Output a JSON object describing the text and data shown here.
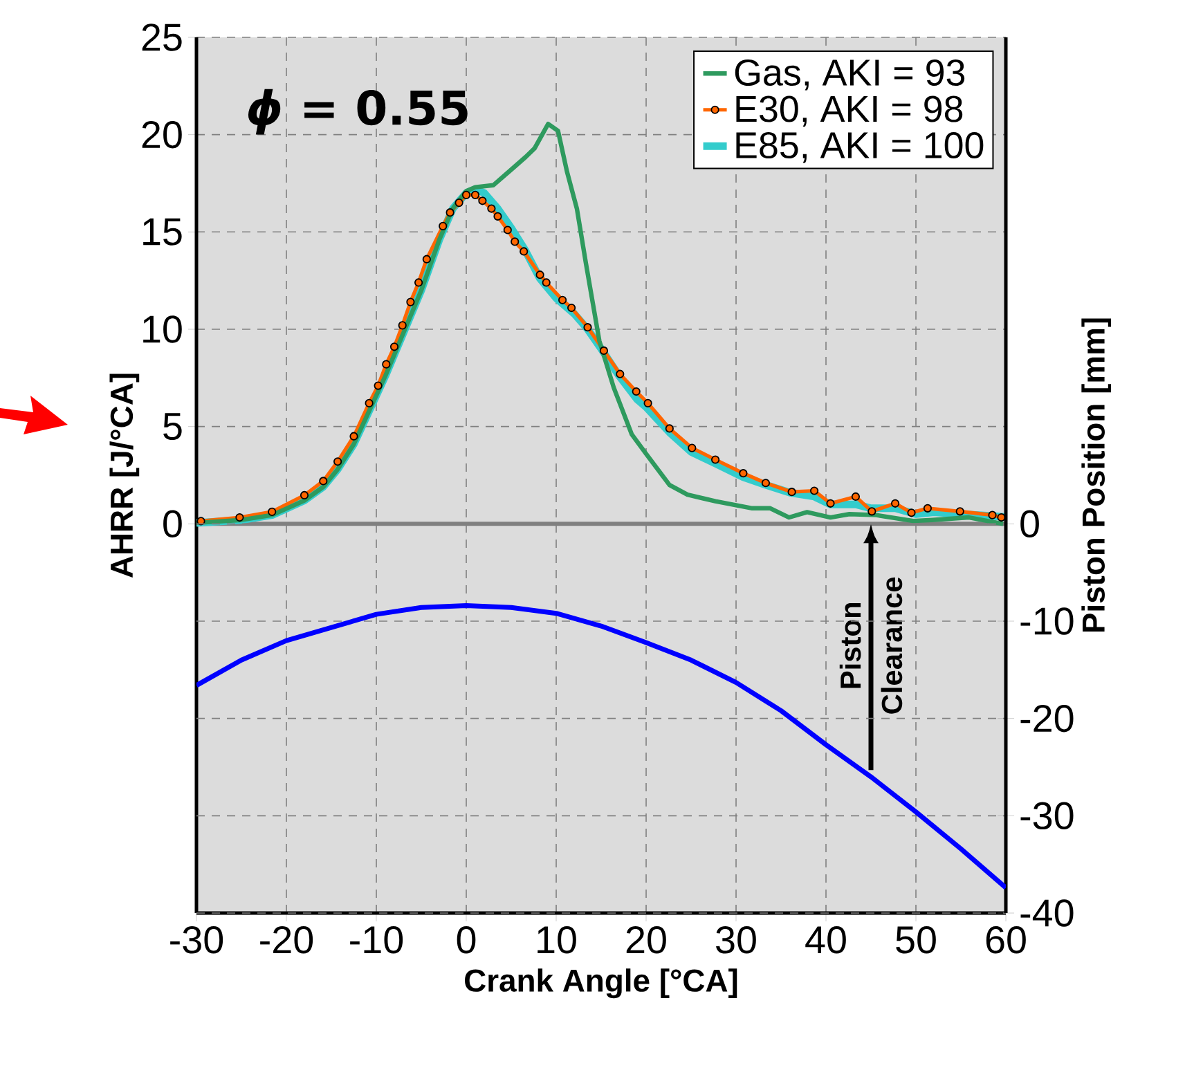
{
  "chart_data": {
    "type": "line",
    "title": "*ϕ* = 0.55",
    "xlabel": "Crank Angle [°CA]",
    "ylabel": "AHRR [J/°CA]",
    "y2label": "Piston Position [mm]",
    "xlim": [
      -30,
      60
    ],
    "xticks": [
      -30,
      -20,
      -10,
      0,
      10,
      20,
      30,
      40,
      50,
      60
    ],
    "ylim": [
      -20,
      25
    ],
    "yticks": [
      0,
      5,
      10,
      15,
      20,
      25
    ],
    "y2lim": [
      -40,
      50
    ],
    "y2ticks": [
      0,
      -10,
      -20,
      -30,
      -40
    ],
    "grid": true,
    "legend": "top right",
    "line_style": "solid",
    "ref_lines": [
      {
        "axis": "y",
        "value": 0,
        "color": "#808080"
      }
    ],
    "annotations": [
      {
        "text": "Piston Clearance",
        "x": 45,
        "y": 0
      }
    ],
    "series": [
      {
        "name": "Gas, AKI = 93",
        "color": "#2e9a5e",
        "x": [
          -30,
          -25,
          -21.6,
          -18,
          -15.9,
          -14.3,
          -12.5,
          -10.8,
          -9,
          -7,
          -5,
          -3,
          -1.5,
          0,
          1,
          3,
          5,
          6.6,
          7.6,
          9.1,
          10.2,
          11.2,
          12.3,
          13.3,
          14.8,
          16.4,
          17.4,
          18.4,
          20,
          22.6,
          24.6,
          27.7,
          31.8,
          33.8,
          35.9,
          37.9,
          40.5,
          42.6,
          45.6,
          49.7,
          51.8,
          55.9,
          59.7
        ],
        "values": [
          0.05,
          0.2,
          0.45,
          1.2,
          1.9,
          2.8,
          4.1,
          5.8,
          7.6,
          9.8,
          12.0,
          14.6,
          16.2,
          17.1,
          17.3,
          17.4,
          18.2,
          18.85,
          19.3,
          20.55,
          20.2,
          18.1,
          16.2,
          13.4,
          9.4,
          7.0,
          5.8,
          4.6,
          3.6,
          2.0,
          1.5,
          1.16,
          0.8,
          0.8,
          0.33,
          0.6,
          0.33,
          0.5,
          0.45,
          0.15,
          0.2,
          0.33,
          0
        ]
      },
      {
        "name": "E30, AKI = 98",
        "color": "#ff6600",
        "marker": "circle",
        "x": [
          -29.5,
          -25.2,
          -21.6,
          -18,
          -15.9,
          -14.3,
          -12.5,
          -10.8,
          -9.8,
          -8.9,
          -8,
          -7.1,
          -6.2,
          -5.3,
          -4.4,
          -2.6,
          -1.8,
          -0.8,
          0,
          1,
          1.8,
          2.8,
          3.5,
          4.6,
          5.4,
          6.4,
          8.2,
          8.9,
          10.7,
          11.7,
          13.5,
          15.3,
          17.1,
          18.9,
          20.2,
          22.6,
          25.1,
          27.7,
          30.8,
          33.3,
          36.2,
          38.7,
          40.5,
          43.3,
          45.1,
          47.7,
          49.5,
          51.3,
          54.9,
          58.5,
          59.5
        ],
        "values": [
          0.14,
          0.33,
          0.62,
          1.47,
          2.2,
          3.2,
          4.5,
          6.2,
          7.1,
          8.2,
          9.1,
          10.2,
          11.4,
          12.4,
          13.6,
          15.3,
          16.0,
          16.5,
          16.9,
          16.9,
          16.6,
          16.2,
          15.8,
          15.1,
          14.5,
          14.0,
          12.8,
          12.4,
          11.5,
          11.1,
          10.1,
          8.9,
          7.7,
          6.8,
          6.2,
          4.9,
          3.9,
          3.3,
          2.6,
          2.1,
          1.64,
          1.7,
          1.05,
          1.4,
          0.64,
          1.05,
          0.57,
          0.8,
          0.64,
          0.45,
          0.33
        ]
      },
      {
        "name": "E85, AKI = 100",
        "color": "#33cccc",
        "x": [
          -30,
          -25,
          -21.6,
          -18,
          -15.9,
          -14.3,
          -12.5,
          -10.8,
          -9,
          -7,
          -5,
          -3,
          -1.5,
          0,
          1,
          2,
          3.5,
          5,
          6.5,
          8.2,
          10,
          12,
          13.5,
          15,
          17,
          19,
          20,
          22.6,
          25,
          27.7,
          30.8,
          33.3,
          36,
          38.7,
          40.5,
          43.3,
          45,
          47.7,
          50,
          52,
          55,
          58.5,
          60
        ],
        "values": [
          0.05,
          0.2,
          0.45,
          1.2,
          1.9,
          2.8,
          4.1,
          5.8,
          7.6,
          9.8,
          12.0,
          14.6,
          16.2,
          17.0,
          17.2,
          17.0,
          16.2,
          15.2,
          14.1,
          12.6,
          11.6,
          10.8,
          10.0,
          9.0,
          7.6,
          6.4,
          6.0,
          4.7,
          3.7,
          3.1,
          2.4,
          2.0,
          1.6,
          1.4,
          1.0,
          1.0,
          0.8,
          0.8,
          0.5,
          0.6,
          0.5,
          0.4,
          0.35
        ]
      },
      {
        "color": "#0000ff",
        "axis": "y2",
        "x": [
          -30,
          -25,
          -20,
          -10,
          -5,
          0,
          5,
          10,
          15,
          20,
          25,
          30,
          35,
          40,
          45,
          50,
          55,
          60
        ],
        "values": [
          -16.6,
          -14.0,
          -12.0,
          -9.3,
          -8.6,
          -8.4,
          -8.6,
          -9.2,
          -10.5,
          -12.2,
          -14.0,
          -16.3,
          -19.2,
          -22.7,
          -26.0,
          -29.6,
          -33.4,
          -37.4
        ]
      }
    ]
  }
}
